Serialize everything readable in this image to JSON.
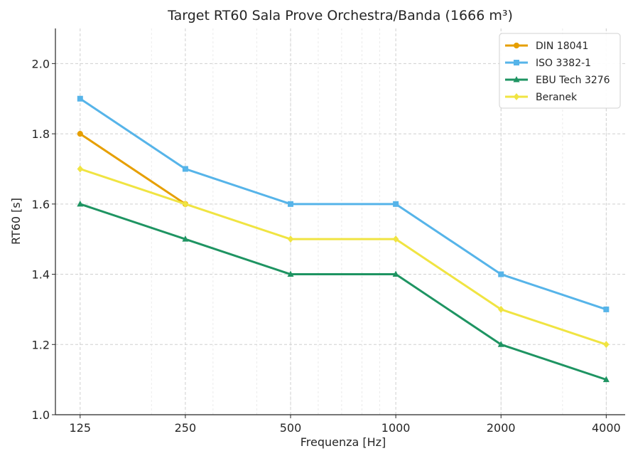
{
  "chart_data": {
    "type": "line",
    "title": "Target RT60 Sala Prove Orchestra/Banda (1666 m³)",
    "xlabel": "Frequenza [Hz]",
    "ylabel": "RT60 [s]",
    "x_scale": "log",
    "categories": [
      "125",
      "250",
      "500",
      "1000",
      "2000",
      "4000"
    ],
    "x": [
      125,
      250,
      500,
      1000,
      2000,
      4000
    ],
    "ylim": [
      1.0,
      2.1
    ],
    "yticks": [
      "1.0",
      "1.2",
      "1.4",
      "1.6",
      "1.8",
      "2.0"
    ],
    "ytick_values": [
      1.0,
      1.2,
      1.4,
      1.6,
      1.8,
      2.0
    ],
    "grid": true,
    "legend_position": "top-right",
    "series": [
      {
        "name": "DIN 18041",
        "color": "#E69F00",
        "marker": "circle",
        "x": [
          125,
          250
        ],
        "values": [
          1.8,
          1.6
        ]
      },
      {
        "name": "ISO 3382-1",
        "color": "#56B4E9",
        "marker": "square",
        "x": [
          125,
          250,
          500,
          1000,
          2000,
          4000
        ],
        "values": [
          1.9,
          1.7,
          1.6,
          1.6,
          1.4,
          1.3
        ]
      },
      {
        "name": "EBU Tech 3276",
        "color": "#1E9462",
        "marker": "triangle",
        "x": [
          125,
          250,
          500,
          1000,
          2000,
          4000
        ],
        "values": [
          1.6,
          1.5,
          1.4,
          1.4,
          1.2,
          1.1
        ]
      },
      {
        "name": "Beranek",
        "color": "#F0E442",
        "marker": "diamond",
        "x": [
          125,
          250,
          500,
          1000,
          2000,
          4000
        ],
        "values": [
          1.7,
          1.6,
          1.5,
          1.5,
          1.3,
          1.2
        ]
      }
    ]
  }
}
